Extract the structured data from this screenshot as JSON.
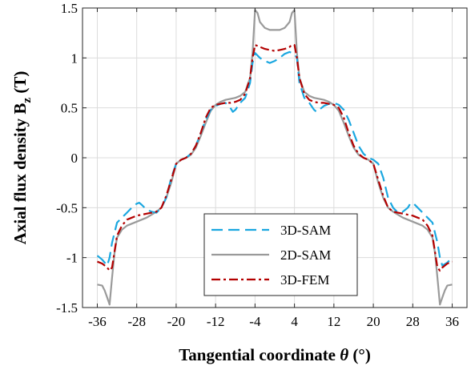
{
  "chart_data": {
    "type": "line",
    "title": "",
    "xlabel": "Tangential coordinate",
    "xlabel_symbol": "θ",
    "xlabel_unit": "(°)",
    "ylabel": "Axial flux density B",
    "ylabel_subscript": "z",
    "ylabel_unit": "(T)",
    "xlim": [
      -39,
      39
    ],
    "ylim": [
      -1.5,
      1.5
    ],
    "xticks": [
      -36,
      -28,
      -20,
      -12,
      -4,
      4,
      12,
      20,
      28,
      36
    ],
    "yticks": [
      -1.5,
      -1,
      -0.5,
      0,
      0.5,
      1,
      1.5
    ],
    "xtick_labels": [
      "-36",
      "-28",
      "-20",
      "-12",
      "-4",
      "4",
      "12",
      "20",
      "28",
      "36"
    ],
    "ytick_labels": [
      "-1.5",
      "-1",
      "-0.5",
      "0",
      "0.5",
      "1",
      "1.5"
    ],
    "grid": true,
    "legend_position": "bottom-center",
    "series": [
      {
        "name": "3D-SAM",
        "color": "#1aa7e0",
        "style": "dashed",
        "x": [
          -36,
          -35,
          -34,
          -33.5,
          -33,
          -32,
          -31,
          -30,
          -29,
          -28,
          -27.5,
          -27,
          -26,
          -25,
          -24,
          -23,
          -22,
          -21,
          -20,
          -19,
          -18,
          -17,
          -16,
          -15,
          -14,
          -13,
          -12,
          -11,
          -10,
          -9,
          -8.5,
          -8,
          -7,
          -6,
          -5,
          -4.5,
          -4,
          -3,
          -2,
          -1,
          0,
          1,
          2,
          3,
          4,
          4.5,
          5,
          6,
          7,
          8,
          8.5,
          9,
          10,
          11,
          12,
          13,
          14,
          15,
          16,
          17,
          18,
          19,
          20,
          21,
          22,
          23,
          24,
          25,
          26,
          27,
          27.5,
          28,
          29,
          30,
          31,
          32,
          33,
          33.5,
          34,
          35,
          36
        ],
        "y": [
          -0.98,
          -1.02,
          -1.08,
          -1.0,
          -0.85,
          -0.65,
          -0.6,
          -0.55,
          -0.5,
          -0.46,
          -0.45,
          -0.47,
          -0.52,
          -0.54,
          -0.55,
          -0.5,
          -0.4,
          -0.2,
          -0.06,
          -0.02,
          0.0,
          0.04,
          0.12,
          0.25,
          0.38,
          0.48,
          0.52,
          0.54,
          0.55,
          0.5,
          0.46,
          0.48,
          0.55,
          0.6,
          0.75,
          0.95,
          1.05,
          1.0,
          0.97,
          0.95,
          0.97,
          1.0,
          1.04,
          1.06,
          1.04,
          1.0,
          0.75,
          0.6,
          0.55,
          0.48,
          0.46,
          0.48,
          0.52,
          0.54,
          0.55,
          0.53,
          0.48,
          0.38,
          0.25,
          0.12,
          0.04,
          0.0,
          -0.02,
          -0.06,
          -0.2,
          -0.4,
          -0.5,
          -0.55,
          -0.54,
          -0.5,
          -0.46,
          -0.45,
          -0.5,
          -0.55,
          -0.6,
          -0.65,
          -0.85,
          -1.0,
          -1.08,
          -1.05,
          -1.0
        ]
      },
      {
        "name": "2D-SAM",
        "color": "#9a9a9a",
        "style": "solid",
        "x": [
          -36,
          -35,
          -34.5,
          -34,
          -33.5,
          -33,
          -32.5,
          -32,
          -31,
          -30,
          -29,
          -28,
          -27,
          -26,
          -25,
          -24,
          -23,
          -22,
          -21,
          -20,
          -19,
          -18,
          -17,
          -16,
          -15,
          -14,
          -13,
          -12,
          -11,
          -10,
          -9,
          -8,
          -7,
          -6,
          -5,
          -4.5,
          -4,
          -3.5,
          -3,
          -2,
          -1,
          0,
          1,
          2,
          3,
          3.5,
          4,
          4.5,
          5,
          6,
          7,
          8,
          9,
          10,
          11,
          12,
          13,
          14,
          15,
          16,
          17,
          18,
          19,
          20,
          21,
          22,
          23,
          24,
          25,
          26,
          27,
          28,
          29,
          30,
          31,
          32,
          32.5,
          33,
          33.5,
          34,
          34.5,
          35,
          36
        ],
        "y": [
          -1.27,
          -1.28,
          -1.33,
          -1.4,
          -1.47,
          -1.2,
          -0.95,
          -0.8,
          -0.72,
          -0.68,
          -0.66,
          -0.64,
          -0.62,
          -0.6,
          -0.57,
          -0.54,
          -0.5,
          -0.4,
          -0.25,
          -0.06,
          -0.02,
          0.0,
          0.03,
          0.1,
          0.22,
          0.35,
          0.47,
          0.53,
          0.56,
          0.58,
          0.59,
          0.6,
          0.62,
          0.66,
          0.8,
          1.05,
          1.48,
          1.45,
          1.36,
          1.3,
          1.28,
          1.28,
          1.28,
          1.3,
          1.36,
          1.45,
          1.48,
          1.05,
          0.8,
          0.66,
          0.62,
          0.6,
          0.59,
          0.58,
          0.56,
          0.53,
          0.47,
          0.35,
          0.22,
          0.1,
          0.03,
          0.0,
          -0.02,
          -0.06,
          -0.25,
          -0.4,
          -0.5,
          -0.54,
          -0.57,
          -0.6,
          -0.62,
          -0.64,
          -0.66,
          -0.68,
          -0.72,
          -0.8,
          -0.95,
          -1.2,
          -1.47,
          -1.4,
          -1.33,
          -1.28,
          -1.27
        ]
      },
      {
        "name": "3D-FEM",
        "color": "#b30000",
        "style": "dash-dot",
        "x": [
          -36,
          -35,
          -34,
          -33.5,
          -33,
          -32,
          -31,
          -30,
          -29,
          -28,
          -27,
          -26,
          -25,
          -24,
          -23,
          -22,
          -21,
          -20,
          -19,
          -18,
          -17,
          -16,
          -15,
          -14,
          -13,
          -12,
          -11,
          -10,
          -9,
          -8,
          -7,
          -6,
          -5,
          -4.5,
          -4,
          -3,
          -2,
          -1,
          0,
          1,
          2,
          3,
          3.5,
          4,
          4.5,
          5,
          6,
          7,
          8,
          9,
          10,
          11,
          12,
          13,
          14,
          15,
          16,
          17,
          18,
          19,
          20,
          21,
          22,
          23,
          24,
          25,
          26,
          27,
          28,
          29,
          30,
          31,
          32,
          33,
          33.5,
          34,
          35,
          36
        ],
        "y": [
          -1.04,
          -1.06,
          -1.1,
          -1.13,
          -1.1,
          -0.78,
          -0.68,
          -0.62,
          -0.6,
          -0.58,
          -0.57,
          -0.56,
          -0.55,
          -0.54,
          -0.5,
          -0.38,
          -0.22,
          -0.06,
          -0.02,
          0.0,
          0.04,
          0.12,
          0.25,
          0.4,
          0.5,
          0.53,
          0.54,
          0.55,
          0.55,
          0.56,
          0.58,
          0.64,
          0.8,
          1.0,
          1.13,
          1.11,
          1.09,
          1.08,
          1.07,
          1.08,
          1.09,
          1.11,
          1.13,
          1.13,
          1.0,
          0.8,
          0.64,
          0.58,
          0.56,
          0.55,
          0.55,
          0.54,
          0.53,
          0.5,
          0.4,
          0.25,
          0.12,
          0.04,
          0.0,
          -0.02,
          -0.06,
          -0.22,
          -0.38,
          -0.5,
          -0.54,
          -0.55,
          -0.56,
          -0.57,
          -0.58,
          -0.6,
          -0.62,
          -0.68,
          -0.78,
          -1.1,
          -1.13,
          -1.1,
          -1.06,
          -1.04
        ]
      }
    ]
  }
}
